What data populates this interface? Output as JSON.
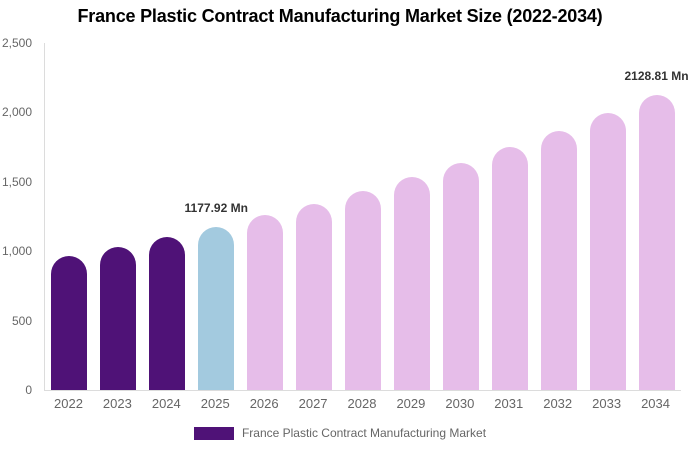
{
  "title": "France Plastic Contract Manufacturing Market Size (2022-2034)",
  "chart_data": {
    "type": "bar",
    "title": "France Plastic Contract Manufacturing Market Size (2022-2034)",
    "categories": [
      "2022",
      "2023",
      "2024",
      "2025",
      "2026",
      "2027",
      "2028",
      "2029",
      "2030",
      "2031",
      "2032",
      "2033",
      "2034"
    ],
    "values": [
      966.95,
      1032.7,
      1102.92,
      1177.92,
      1258.02,
      1343.57,
      1434.93,
      1532.51,
      1636.72,
      1748.02,
      1866.88,
      1993.83,
      2128.81
    ],
    "unit": "Mn",
    "data_labels": [
      "",
      "",
      "",
      "1177.92 Mn",
      "",
      "",
      "",
      "",
      "",
      "",
      "",
      "",
      "2128.81 Mn"
    ],
    "point_colors": [
      "#4F1277",
      "#4F1277",
      "#4F1277",
      "#A3CADF",
      "#E6BDE9",
      "#E6BDE9",
      "#E6BDE9",
      "#E6BDE9",
      "#E6BDE9",
      "#E6BDE9",
      "#E6BDE9",
      "#E6BDE9",
      "#E6BDE9"
    ],
    "colors": {
      "historical_bar": "#4F1277",
      "base_year_bar": "#A3CADF",
      "forecast_bar": "#E6BDE9",
      "axis_line": "#DCDCDC",
      "axis_text": "#666666",
      "data_label_text": "#333333",
      "title_text": "#000000"
    },
    "xlabel": "",
    "ylabel": "",
    "ylim": [
      0,
      2500
    ],
    "y_ticks": [
      "2,500",
      "2,000",
      "1,500",
      "1,000",
      "500",
      "0"
    ],
    "grid": false,
    "legend_position": "bottom"
  },
  "legend": {
    "label": "France Plastic Contract Manufacturing Market",
    "swatch_color": "#4F1277"
  }
}
